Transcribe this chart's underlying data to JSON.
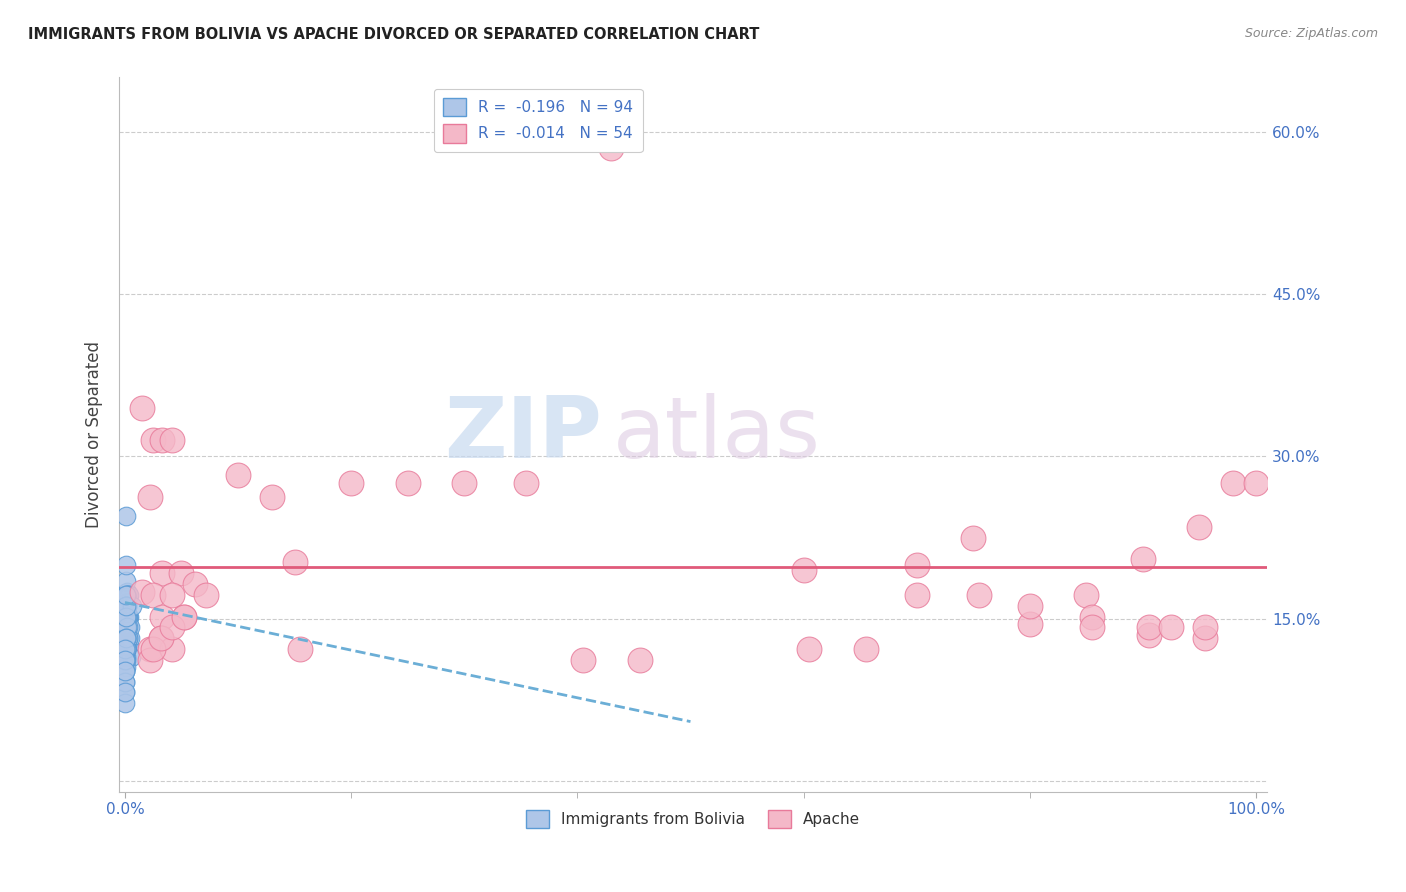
{
  "title": "IMMIGRANTS FROM BOLIVIA VS APACHE DIVORCED OR SEPARATED CORRELATION CHART",
  "source": "Source: ZipAtlas.com",
  "ylabel": "Divorced or Separated",
  "ytick_vals": [
    0.0,
    0.15,
    0.3,
    0.45,
    0.6
  ],
  "xtick_vals": [
    0.0,
    0.2,
    0.4,
    0.6,
    0.8,
    1.0
  ],
  "legend_r_blue": "R = -0.196",
  "legend_n_blue": "N = 94",
  "legend_r_pink": "R = -0.014",
  "legend_n_pink": "N = 54",
  "legend_labels_bottom": [
    "Immigrants from Bolivia",
    "Apache"
  ],
  "watermark_zip": "ZIP",
  "watermark_atlas": "atlas",
  "blue_scatter_x": [
    0.0008,
    0.0015,
    0.002,
    0.001,
    0.0012,
    0.0025,
    0.0018,
    0.003,
    0.0035,
    0.0022,
    0.0008,
    0.001,
    0.0018,
    0.0028,
    0.0009,
    0.0017,
    0.0038,
    0.0045,
    0.003,
    0.002,
    0.0007,
    0.0009,
    0.0025,
    0.0038,
    0.001,
    0.0015,
    0.0009,
    0.0019,
    0.0028,
    0.0008,
    0.0006,
    0.0016,
    0.0008,
    0.0009,
    0.0018,
    0.0007,
    0.0026,
    0.0016,
    0.0008,
    0.001,
    0.0005,
    0.0015,
    0.0008,
    0.0009,
    0.001,
    0.0006,
    0.0016,
    0.0007,
    0.0048,
    0.0055,
    0.0015,
    0.0007,
    0.0018,
    0.0028,
    0.0006,
    0.0016,
    0.0006,
    0.0009,
    0.0018,
    0.0007,
    0.0007,
    0.0026,
    0.0006,
    0.0016,
    0.0006,
    0.0008,
    0.0007,
    0.0008,
    0.0009,
    0.006,
    0.0006,
    0.0006,
    0.0006,
    0.0007,
    0.0015,
    0.0006,
    0.0006,
    0.0007,
    0.0006,
    0.0007,
    0.0005,
    0.0005,
    0.0007,
    0.0006,
    0.0005,
    0.0005,
    0.0005,
    0.0005,
    0.0005,
    0.0005,
    0.0005,
    0.0005,
    0.0005,
    0.0005
  ],
  "blue_scatter_y": [
    0.245,
    0.175,
    0.155,
    0.185,
    0.2,
    0.172,
    0.162,
    0.145,
    0.152,
    0.165,
    0.125,
    0.132,
    0.142,
    0.15,
    0.162,
    0.172,
    0.125,
    0.132,
    0.15,
    0.162,
    0.145,
    0.132,
    0.152,
    0.172,
    0.125,
    0.132,
    0.162,
    0.142,
    0.152,
    0.162,
    0.17,
    0.125,
    0.132,
    0.142,
    0.152,
    0.125,
    0.132,
    0.142,
    0.152,
    0.162,
    0.115,
    0.132,
    0.142,
    0.152,
    0.172,
    0.122,
    0.142,
    0.162,
    0.142,
    0.115,
    0.132,
    0.122,
    0.152,
    0.142,
    0.132,
    0.152,
    0.122,
    0.142,
    0.132,
    0.162,
    0.122,
    0.132,
    0.142,
    0.152,
    0.115,
    0.122,
    0.132,
    0.142,
    0.152,
    0.162,
    0.105,
    0.112,
    0.122,
    0.132,
    0.142,
    0.152,
    0.162,
    0.172,
    0.132,
    0.122,
    0.112,
    0.102,
    0.122,
    0.132,
    0.092,
    0.082,
    0.112,
    0.072,
    0.102,
    0.092,
    0.082,
    0.122,
    0.112,
    0.102
  ],
  "pink_scatter_x": [
    0.43,
    0.015,
    0.025,
    0.033,
    0.042,
    0.1,
    0.13,
    0.022,
    0.15,
    0.033,
    0.05,
    0.015,
    0.025,
    0.6,
    0.7,
    0.75,
    0.8,
    0.85,
    0.9,
    0.95,
    0.3,
    0.355,
    0.2,
    0.25,
    0.8,
    0.855,
    0.905,
    0.955,
    0.7,
    0.755,
    0.855,
    0.905,
    0.925,
    0.955,
    0.98,
    1.0,
    0.605,
    0.655,
    0.405,
    0.455,
    0.155,
    0.033,
    0.042,
    0.052,
    0.062,
    0.072,
    0.022,
    0.032,
    0.022,
    0.042,
    0.025,
    0.032,
    0.042,
    0.052
  ],
  "pink_scatter_y": [
    0.585,
    0.345,
    0.315,
    0.315,
    0.315,
    0.283,
    0.262,
    0.262,
    0.202,
    0.192,
    0.192,
    0.175,
    0.172,
    0.195,
    0.2,
    0.225,
    0.145,
    0.172,
    0.205,
    0.235,
    0.275,
    0.275,
    0.275,
    0.275,
    0.162,
    0.152,
    0.135,
    0.132,
    0.172,
    0.172,
    0.142,
    0.142,
    0.142,
    0.142,
    0.275,
    0.275,
    0.122,
    0.122,
    0.112,
    0.112,
    0.122,
    0.152,
    0.172,
    0.152,
    0.182,
    0.172,
    0.122,
    0.132,
    0.112,
    0.122,
    0.122,
    0.132,
    0.142,
    0.152
  ],
  "blue_trend_x": [
    0.0,
    0.5
  ],
  "blue_trend_y": [
    0.165,
    0.055
  ],
  "pink_trend_y": 0.198,
  "blue_color": "#5b9bd5",
  "blue_color_light": "#aec6e8",
  "pink_color": "#e87a9a",
  "pink_color_light": "#f4b8c8",
  "pink_line_color": "#e05a7a",
  "blue_line_color": "#6baed6",
  "background_color": "#ffffff",
  "grid_color": "#cccccc",
  "title_color": "#222222",
  "axis_color": "#4472c4",
  "xlim": [
    -0.005,
    1.01
  ],
  "ylim": [
    -0.01,
    0.65
  ]
}
